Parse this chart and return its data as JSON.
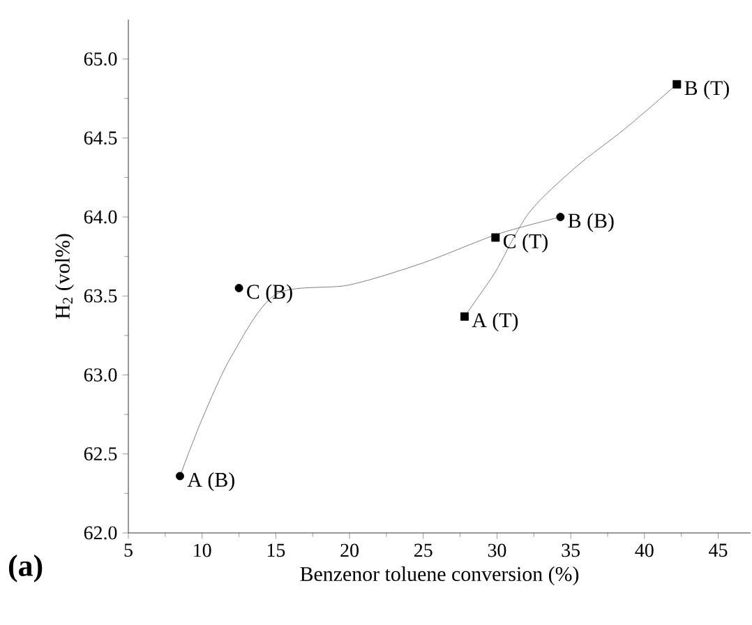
{
  "chart_data": {
    "type": "scatter",
    "xlabel": "Benzenor toluene conversion (%)",
    "ylabel": "H$_{2}$ (vol%)",
    "xlim": [
      5,
      47.2
    ],
    "ylim": [
      62.0,
      65.25
    ],
    "xticks": [
      5,
      10,
      15,
      20,
      25,
      30,
      35,
      40,
      45
    ],
    "yticks": [
      {
        "value": 62.0,
        "label": "62.0"
      },
      {
        "value": 62.5,
        "label": "62.5"
      },
      {
        "value": 63.0,
        "label": "63.0"
      },
      {
        "value": 63.5,
        "label": "63.5"
      },
      {
        "value": 64.0,
        "label": "64.0"
      },
      {
        "value": 64.5,
        "label": "64.5"
      },
      {
        "value": 65.0,
        "label": "65.0"
      }
    ],
    "grid": false,
    "legend": false,
    "series": [
      {
        "marker": "circle",
        "color": "#000000",
        "x": [
          8.5,
          12.5,
          34.3
        ],
        "values": [
          62.36,
          63.55,
          64.0
        ]
      },
      {
        "marker": "square",
        "color": "#000000",
        "x": [
          27.8,
          29.9,
          42.2
        ],
        "values": [
          63.37,
          63.87,
          64.84
        ]
      },
      {
        "type": "line",
        "marker": "none",
        "color": "#606060",
        "x": [
          8.5,
          10,
          12,
          15,
          20,
          25,
          30,
          34.3
        ],
        "values": [
          62.36,
          62.72,
          63.12,
          63.51,
          63.57,
          63.71,
          63.89,
          64.0
        ]
      },
      {
        "type": "line",
        "marker": "none",
        "color": "#606060",
        "x": [
          27.8,
          29.3,
          30,
          32.2,
          35.4,
          38.7,
          42.2
        ],
        "values": [
          63.37,
          63.57,
          63.67,
          64.03,
          64.32,
          64.56,
          64.84
        ]
      }
    ],
    "annotations": [
      {
        "text": "A (B)",
        "x": 8.5,
        "y": 62.36
      },
      {
        "text": "C (B)",
        "x": 12.5,
        "y": 63.55
      },
      {
        "text": "B (B)",
        "x": 34.3,
        "y": 64.0
      },
      {
        "text": "A (T)",
        "x": 27.8,
        "y": 63.37
      },
      {
        "text": "C (T)",
        "x": 29.9,
        "y": 63.87
      },
      {
        "text": "B (T)",
        "x": 42.2,
        "y": 64.84
      },
      "**(a)**"
    ]
  }
}
